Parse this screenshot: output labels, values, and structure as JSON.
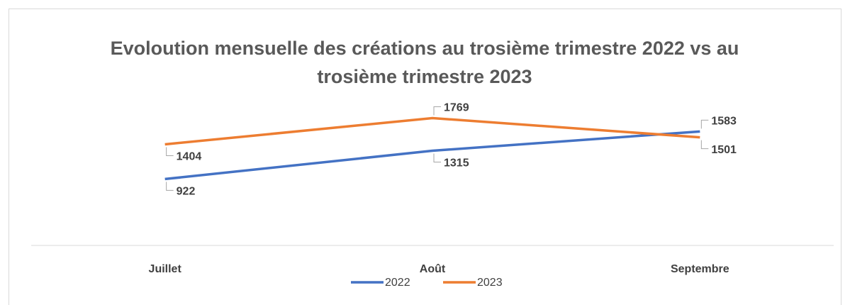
{
  "chart_data": {
    "type": "line",
    "title": "Evoloution mensuelle des créations au trosième trimestre 2022 vs au trosième trimestre 2023",
    "categories": [
      "Juillet",
      "Août",
      "Septembre"
    ],
    "series": [
      {
        "name": "2022",
        "color": "#4472c4",
        "values": [
          922,
          1315,
          1583
        ]
      },
      {
        "name": "2023",
        "color": "#ed7d31",
        "values": [
          1404,
          1769,
          1501
        ]
      }
    ],
    "ylim": [
      0,
      2000
    ],
    "legend": "bottom"
  }
}
